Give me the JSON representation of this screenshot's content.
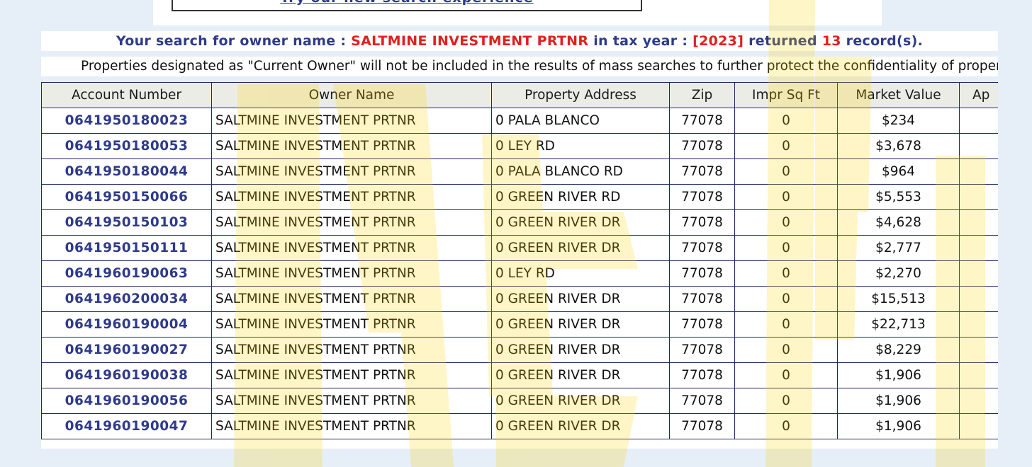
{
  "banner": {
    "try_link": "Try our new search experience"
  },
  "search_summary": {
    "prefix": "Your search for owner name : ",
    "owner": "SALTMINE INVESTMENT PRTNR",
    "mid": " in tax year : ",
    "year": "[2023]",
    "returned": " returned ",
    "count": "13",
    "suffix": " record(s)."
  },
  "notice": "Properties designated as \"Current Owner\" will not be included in the results of mass searches to further protect the confidentiality of proper",
  "table": {
    "headers": [
      "Account Number",
      "Owner Name",
      "Property Address",
      "Zip",
      "Impr Sq Ft",
      "Market Value",
      "Ap"
    ],
    "rows": [
      {
        "account": "0641950180023",
        "owner": "SALTMINE INVESTMENT PRTNR",
        "address": "0 PALA BLANCO",
        "zip": "77078",
        "sqft": "0",
        "value": "$234"
      },
      {
        "account": "0641950180053",
        "owner": "SALTMINE INVESTMENT PRTNR",
        "address": "0 LEY RD",
        "zip": "77078",
        "sqft": "0",
        "value": "$3,678"
      },
      {
        "account": "0641950180044",
        "owner": "SALTMINE INVESTMENT PRTNR",
        "address": "0 PALA BLANCO RD",
        "zip": "77078",
        "sqft": "0",
        "value": "$964"
      },
      {
        "account": "0641950150066",
        "owner": "SALTMINE INVESTMENT PRTNR",
        "address": "0 GREEN RIVER RD",
        "zip": "77078",
        "sqft": "0",
        "value": "$5,553"
      },
      {
        "account": "0641950150103",
        "owner": "SALTMINE INVESTMENT PRTNR",
        "address": "0 GREEN RIVER DR",
        "zip": "77078",
        "sqft": "0",
        "value": "$4,628"
      },
      {
        "account": "0641950150111",
        "owner": "SALTMINE INVESTMENT PRTNR",
        "address": "0 GREEN RIVER DR",
        "zip": "77078",
        "sqft": "0",
        "value": "$2,777"
      },
      {
        "account": "0641960190063",
        "owner": "SALTMINE INVESTMENT PRTNR",
        "address": "0 LEY RD",
        "zip": "77078",
        "sqft": "0",
        "value": "$2,270"
      },
      {
        "account": "0641960200034",
        "owner": "SALTMINE INVESTMENT PRTNR",
        "address": "0 GREEN RIVER DR",
        "zip": "77078",
        "sqft": "0",
        "value": "$15,513"
      },
      {
        "account": "0641960190004",
        "owner": "SALTMINE INVESTMENT PRTNR",
        "address": "0 GREEN RIVER DR",
        "zip": "77078",
        "sqft": "0",
        "value": "$22,713"
      },
      {
        "account": "0641960190027",
        "owner": "SALTMINE INVESTMENT PRTNR",
        "address": "0 GREEN RIVER DR",
        "zip": "77078",
        "sqft": "0",
        "value": "$8,229"
      },
      {
        "account": "0641960190038",
        "owner": "SALTMINE INVESTMENT PRTNR",
        "address": "0 GREEN RIVER DR",
        "zip": "77078",
        "sqft": "0",
        "value": "$1,906"
      },
      {
        "account": "0641960190056",
        "owner": "SALTMINE INVESTMENT PRTNR",
        "address": "0 GREEN RIVER DR",
        "zip": "77078",
        "sqft": "0",
        "value": "$1,906"
      },
      {
        "account": "0641960190047",
        "owner": "SALTMINE INVESTMENT PRTNR",
        "address": "0 GREEN RIVER DR",
        "zip": "77078",
        "sqft": "0",
        "value": "$1,906"
      }
    ]
  },
  "colors": {
    "link_blue": "#2e3a8c",
    "highlight_red": "#e0201e",
    "border": "#1b2a6a",
    "header_bg": "#ecece6",
    "page_bg": "#e6eef8",
    "overlay_yellow": "#ffd400"
  }
}
